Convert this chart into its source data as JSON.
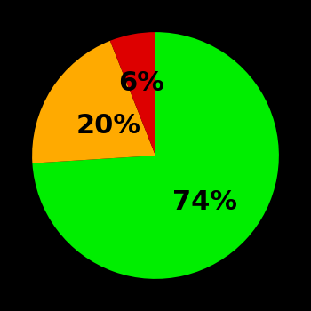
{
  "slices": [
    74,
    20,
    6
  ],
  "colors": [
    "#00ee00",
    "#ffaa00",
    "#dd0000"
  ],
  "labels": [
    "74%",
    "20%",
    "6%"
  ],
  "background_color": "#000000",
  "startangle": 90,
  "label_fontsize": 22,
  "label_fontweight": "bold",
  "label_radii": [
    0.55,
    0.45,
    0.6
  ]
}
